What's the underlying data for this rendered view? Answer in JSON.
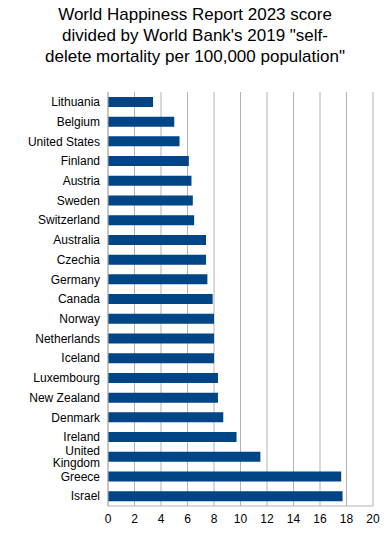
{
  "chart_data": {
    "type": "bar",
    "title": "World Happiness Report 2023 score\ndivided by World Bank's 2019 \"self-\ndelete mortality per 100,000 population\"",
    "orientation": "horizontal",
    "categories": [
      "Lithuania",
      "Belgium",
      "United States",
      "Finland",
      "Austria",
      "Sweden",
      "Switzerland",
      "Australia",
      "Czechia",
      "Germany",
      "Canada",
      "Norway",
      "Netherlands",
      "Iceland",
      "Luxembourg",
      "New Zealand",
      "Denmark",
      "Ireland",
      "United Kingdom",
      "Greece",
      "Israel"
    ],
    "values": [
      3.4,
      5.0,
      5.4,
      6.1,
      6.3,
      6.4,
      6.5,
      7.4,
      7.4,
      7.5,
      7.9,
      8.0,
      8.0,
      8.0,
      8.3,
      8.3,
      8.7,
      9.7,
      11.5,
      17.6,
      17.7
    ],
    "color": "#004586",
    "xlim": [
      0,
      20
    ],
    "xticks": [
      0,
      2,
      4,
      6,
      8,
      10,
      12,
      14,
      16,
      18,
      20
    ],
    "grid": true
  }
}
